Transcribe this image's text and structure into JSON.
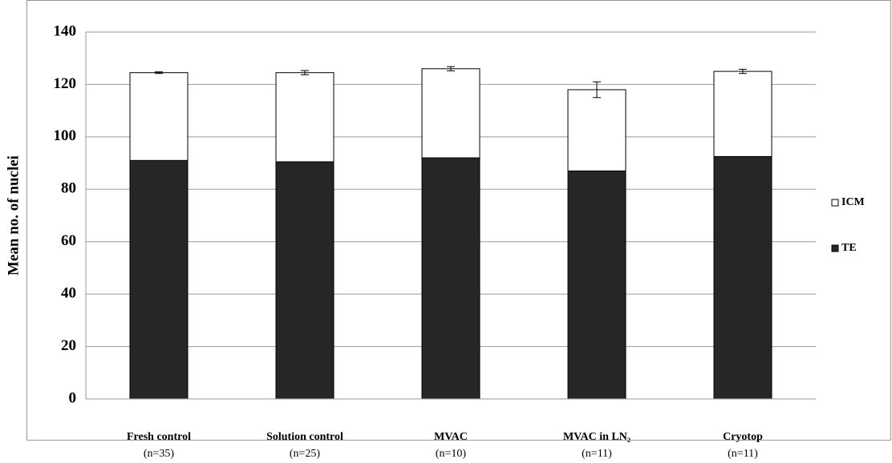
{
  "chart_data": {
    "type": "stacked-bar",
    "y_label": "Mean no. of nuclei",
    "categories": [
      "Fresh control",
      "Solution control",
      "MVAC",
      "MVAC in LN₂",
      "Cryotop"
    ],
    "sample_sizes": [
      "(n=35)",
      "(n=25)",
      "(n=10)",
      "(n=11)",
      "(n=11)"
    ],
    "series": [
      {
        "name": "TE",
        "color": "#262626",
        "values": [
          91,
          90.5,
          92,
          87,
          92.5
        ]
      },
      {
        "name": "ICM",
        "color": "#ffffff",
        "values": [
          33.5,
          34,
          34,
          31,
          32.5
        ],
        "errors": [
          0.3,
          0.8,
          0.8,
          3,
          0.8
        ]
      }
    ],
    "ylim": [
      0,
      140
    ],
    "yticks": [
      0,
      20,
      40,
      60,
      80,
      100,
      120,
      140
    ],
    "grid": true,
    "legend": "right"
  }
}
